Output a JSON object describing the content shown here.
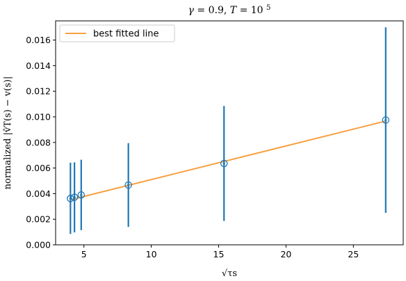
{
  "chart_data": {
    "type": "scatter",
    "title_parts": {
      "gamma_symbol": "γ",
      "gamma_value": "= 0.9,",
      "T_symbol": "T",
      "T_equals": " = 10",
      "T_exponent": "5"
    },
    "xlabel": "√τs",
    "ylabel": "normalized |v̂T(s) − v(s)|",
    "xlim": [
      2.9,
      28.7
    ],
    "ylim": [
      0,
      0.0175
    ],
    "xticks": [
      5,
      10,
      15,
      20,
      25
    ],
    "xtick_labels": [
      "5",
      "10",
      "15",
      "20",
      "25"
    ],
    "yticks": [
      0,
      0.002,
      0.004,
      0.006,
      0.008,
      0.01,
      0.012,
      0.014,
      0.016
    ],
    "ytick_labels": [
      "0.000",
      "0.002",
      "0.004",
      "0.006",
      "0.008",
      "0.010",
      "0.012",
      "0.014",
      "0.016"
    ],
    "grid": false,
    "legend": {
      "position": "top-left",
      "entries": [
        "best fitted line"
      ]
    },
    "series": [
      {
        "name": "best fitted line",
        "kind": "line",
        "color": "#f8a040",
        "x": [
          4.0,
          27.4
        ],
        "y": [
          0.00352,
          0.00967
        ]
      },
      {
        "kind": "errorbar",
        "color": "#1f77b4",
        "points": [
          {
            "x": 4.0,
            "y": 0.00362,
            "ylow": 0.00085,
            "yhigh": 0.00642
          },
          {
            "x": 4.3,
            "y": 0.00372,
            "ylow": 0.00097,
            "yhigh": 0.00645
          },
          {
            "x": 4.8,
            "y": 0.0039,
            "ylow": 0.00115,
            "yhigh": 0.00665
          },
          {
            "x": 8.3,
            "y": 0.00467,
            "ylow": 0.0014,
            "yhigh": 0.00795
          },
          {
            "x": 15.4,
            "y": 0.00636,
            "ylow": 0.00187,
            "yhigh": 0.01085
          },
          {
            "x": 27.4,
            "y": 0.00975,
            "ylow": 0.0025,
            "yhigh": 0.017
          }
        ]
      }
    ]
  }
}
